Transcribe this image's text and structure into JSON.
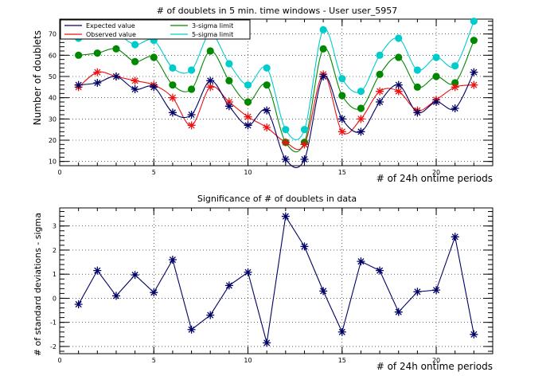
{
  "chart_data": [
    {
      "type": "line",
      "title": "# of doublets in 5 min. time windows - User user_5957",
      "xlabel": "# of 24h ontime periods",
      "ylabel": "Number of doublets",
      "xlim": [
        0,
        23
      ],
      "ylim": [
        8,
        77
      ],
      "xticks": [
        0,
        5,
        10,
        15,
        20
      ],
      "yticks": [
        10,
        20,
        30,
        40,
        50,
        60,
        70
      ],
      "grid": true,
      "legend_position": "top-left",
      "x": [
        1,
        2,
        3,
        4,
        5,
        6,
        7,
        8,
        9,
        10,
        11,
        12,
        13,
        14,
        15,
        16,
        17,
        18,
        19,
        20,
        21,
        22
      ],
      "series": [
        {
          "name": "Expected value",
          "color": "#000066",
          "marker": "star",
          "values": [
            46,
            47,
            50,
            44,
            45,
            33,
            32,
            48,
            36,
            27,
            34,
            11,
            11,
            50,
            30,
            24,
            38,
            46,
            33,
            38,
            35,
            52
          ]
        },
        {
          "name": "Observed value",
          "color": "#ee1111",
          "marker": "star",
          "values": [
            45,
            52,
            50,
            48,
            46,
            40,
            27,
            45,
            38,
            31,
            26,
            19,
            18,
            51,
            24,
            30,
            43,
            43,
            34,
            39,
            45,
            46
          ]
        },
        {
          "name": "3-sigma limit",
          "color": "#008800",
          "marker": "dot",
          "values": [
            60,
            61,
            63,
            57,
            59,
            46,
            44,
            62,
            48,
            38,
            46,
            19,
            19,
            63,
            41,
            35,
            51,
            59,
            45,
            50,
            47,
            67
          ]
        },
        {
          "name": "5-sigma limit",
          "color": "#00cccc",
          "marker": "dot",
          "values": [
            68,
            69,
            70,
            65,
            67,
            54,
            53,
            70,
            56,
            46,
            54,
            25,
            25,
            72,
            49,
            43,
            60,
            68,
            53,
            59,
            55,
            76
          ]
        }
      ]
    },
    {
      "type": "line",
      "title": "Significance of # of doublets in data",
      "xlabel": "# of 24h ontime periods",
      "ylabel": "# of standard deviations - sigma",
      "xlim": [
        0,
        23
      ],
      "ylim": [
        -2.3,
        3.75
      ],
      "xticks": [
        0,
        5,
        10,
        15,
        20
      ],
      "yticks": [
        -2,
        -1,
        0,
        1,
        2,
        3
      ],
      "grid": true,
      "x": [
        1,
        2,
        3,
        4,
        5,
        6,
        7,
        8,
        9,
        10,
        11,
        12,
        13,
        14,
        15,
        16,
        17,
        18,
        19,
        20,
        21,
        22
      ],
      "series": [
        {
          "color": "#000066",
          "marker": "star",
          "values": [
            -0.25,
            1.15,
            0.1,
            0.97,
            0.24,
            1.6,
            -1.3,
            -0.7,
            0.53,
            1.08,
            -1.85,
            3.4,
            2.15,
            0.3,
            -1.4,
            1.53,
            1.15,
            -0.57,
            0.27,
            0.34,
            2.55,
            -1.5
          ]
        }
      ]
    }
  ]
}
